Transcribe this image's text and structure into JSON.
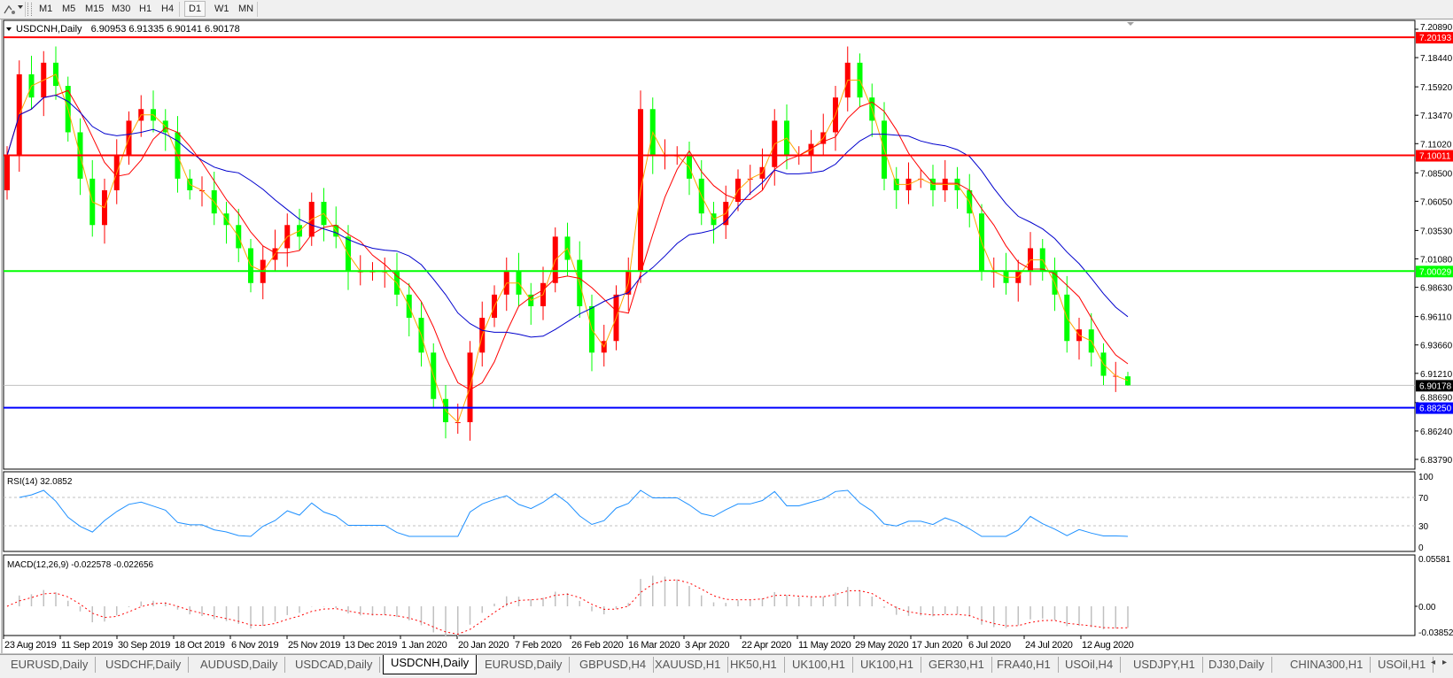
{
  "toolbar": {
    "draw_tool_icon": "drawing-tools-icon",
    "timeframes": [
      "M1",
      "M5",
      "M15",
      "M30",
      "H1",
      "H4",
      "D1",
      "W1",
      "MN"
    ],
    "active_timeframe": "D1"
  },
  "chart_data": {
    "type": "candlestick",
    "title": "USDCNH,Daily",
    "ohlc_readout": "6.90953 6.91335 6.90141 6.90178",
    "last_bar": {
      "open": 6.90953,
      "high": 6.91335,
      "low": 6.90141,
      "close": 6.90178
    },
    "closes": [
      7.1,
      7.17,
      7.15,
      7.18,
      7.16,
      7.12,
      7.08,
      7.04,
      7.07,
      7.1,
      7.13,
      7.14,
      7.13,
      7.12,
      7.08,
      7.07,
      7.07,
      7.05,
      7.04,
      7.02,
      6.99,
      7.01,
      7.02,
      7.04,
      7.03,
      7.06,
      7.04,
      7.03,
      7.0,
      7.0,
      7.0,
      7.0,
      6.98,
      6.96,
      6.93,
      6.89,
      6.87,
      6.87,
      6.93,
      6.96,
      6.98,
      7.0,
      6.98,
      6.97,
      6.99,
      7.03,
      7.01,
      6.97,
      6.93,
      6.94,
      6.98,
      7.0,
      7.14,
      7.1,
      7.1,
      7.1,
      7.08,
      7.05,
      7.04,
      7.06,
      7.08,
      7.08,
      7.09,
      7.13,
      7.1,
      7.1,
      7.11,
      7.12,
      7.15,
      7.18,
      7.15,
      7.13,
      7.08,
      7.07,
      7.08,
      7.08,
      7.07,
      7.08,
      7.07,
      7.05,
      7.0,
      7.0,
      6.99,
      7.0,
      7.02,
      7.0,
      6.98,
      6.94,
      6.95,
      6.93,
      6.91,
      6.91,
      6.90178
    ],
    "ylim": [
      6.8379,
      7.2089
    ],
    "y_ticks": [
      "7.20890",
      "7.18440",
      "7.15920",
      "7.13470",
      "7.11020",
      "7.08500",
      "7.06050",
      "7.03530",
      "7.01080",
      "6.98630",
      "6.96110",
      "6.93660",
      "6.91210",
      "6.88690",
      "6.86240",
      "6.83790"
    ],
    "x_ticks": [
      "23 Aug 2019",
      "11 Sep 2019",
      "30 Sep 2019",
      "18 Oct 2019",
      "6 Nov 2019",
      "25 Nov 2019",
      "13 Dec 2019",
      "1 Jan 2020",
      "20 Jan 2020",
      "7 Feb 2020",
      "26 Feb 2020",
      "16 Mar 2020",
      "3 Apr 2020",
      "22 Apr 2020",
      "11 May 2020",
      "29 May 2020",
      "17 Jun 2020",
      "6 Jul 2020",
      "24 Jul 2020",
      "12 Aug 2020"
    ],
    "bull_color": "#ff0000",
    "bear_color": "#00ff00",
    "moving_averages": [
      {
        "color": "#ffa500"
      },
      {
        "color": "#ff0000"
      },
      {
        "color": "#0000cd"
      }
    ],
    "levels": [
      {
        "label": "7.20193",
        "value": 7.20193,
        "color": "#ff0000"
      },
      {
        "label": "7.10011",
        "value": 7.10011,
        "color": "#ff0000"
      },
      {
        "label": "7.00029",
        "value": 7.00029,
        "color": "#00ff00"
      },
      {
        "label": "6.88250",
        "value": 6.8825,
        "color": "#0000ff"
      }
    ],
    "current_price": {
      "label": "6.90178",
      "value": 6.90178,
      "color": "#000000"
    },
    "rsi": {
      "legend": "RSI(14) 32.0852",
      "ylim": [
        0,
        100
      ],
      "levels": [
        70,
        30
      ],
      "y_ticks": [
        "100",
        "70",
        "30",
        "0"
      ],
      "color": "#1e90ff"
    },
    "macd": {
      "legend": "MACD(12,26,9) -0.022578 -0.022656",
      "y_ticks": [
        "0.05581",
        "0.00",
        "-0.038524"
      ],
      "ylim": [
        -0.038524,
        0.05581
      ],
      "histogram_color": "#c0c0c0",
      "signal_color": "#ff0000"
    }
  },
  "tabs": {
    "items": [
      "EURUSD,Daily",
      "USDCHF,Daily",
      "AUDUSD,Daily",
      "USDCAD,Daily",
      "USDCNH,Daily",
      "EURUSD,Daily",
      "GBPUSD,H4",
      "XAUUSD,H1",
      "HK50,H1",
      "UK100,H1",
      "UK100,H1",
      "GER30,H1",
      "FRA40,H1",
      "USOil,H4",
      "USDJPY,H1",
      "DJ30,Daily",
      "CHINA300,H1",
      "USOil,H1"
    ],
    "active": 4
  }
}
